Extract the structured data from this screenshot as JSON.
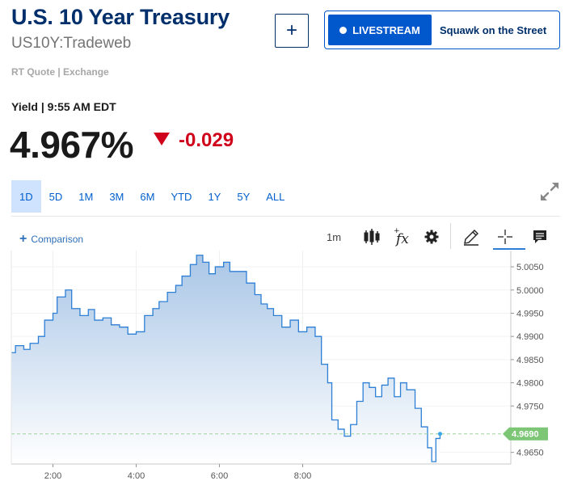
{
  "header": {
    "title": "U.S. 10 Year Treasury",
    "symbol": "US10Y:Tradeweb",
    "add_label": "+",
    "livestream_label": "LIVESTREAM",
    "show_name": "Squawk on the Street",
    "source": "RT Quote | Exchange"
  },
  "quote": {
    "yield_time": "Yield | 9:55 AM EDT",
    "price": "4.967%",
    "change": "-0.029",
    "change_color": "#d0021b"
  },
  "ranges": [
    {
      "label": "1D",
      "active": true
    },
    {
      "label": "5D"
    },
    {
      "label": "1M"
    },
    {
      "label": "3M"
    },
    {
      "label": "6M"
    },
    {
      "label": "YTD"
    },
    {
      "label": "1Y"
    },
    {
      "label": "5Y"
    },
    {
      "label": "ALL"
    }
  ],
  "toolbar": {
    "comparison_label": "Comparison",
    "interval": "1m",
    "icons": [
      "candlestick-icon",
      "function-icon",
      "gear-icon",
      "pencil-icon",
      "crosshair-icon",
      "comment-icon"
    ]
  },
  "chart_data": {
    "type": "area",
    "x_ticks": [
      "2:00",
      "4:00",
      "6:00",
      "8:00"
    ],
    "y_ticks": [
      "5.0050",
      "5.0000",
      "4.9950",
      "4.9900",
      "4.9850",
      "4.9800",
      "4.9750",
      "4.9690",
      "4.9650"
    ],
    "ylim": [
      4.9625,
      5.0085
    ],
    "xlim": [
      0,
      24
    ],
    "last_value": "4.9690",
    "last_value_num": 4.969,
    "series": [
      {
        "color": "#2d7fd6",
        "points": [
          [
            0.0,
            4.9865
          ],
          [
            0.2,
            4.988
          ],
          [
            0.6,
            4.9872
          ],
          [
            0.9,
            4.9885
          ],
          [
            1.3,
            4.99
          ],
          [
            1.6,
            4.9935
          ],
          [
            2.0,
            4.995
          ],
          [
            2.2,
            4.9985
          ],
          [
            2.6,
            5.0
          ],
          [
            2.9,
            4.996
          ],
          [
            3.3,
            4.9945
          ],
          [
            3.7,
            4.9958
          ],
          [
            4.0,
            4.9935
          ],
          [
            4.4,
            4.994
          ],
          [
            4.8,
            4.9925
          ],
          [
            5.2,
            4.992
          ],
          [
            5.6,
            4.9905
          ],
          [
            6.0,
            4.991
          ],
          [
            6.4,
            4.9945
          ],
          [
            6.8,
            4.996
          ],
          [
            7.1,
            4.9975
          ],
          [
            7.5,
            4.9995
          ],
          [
            7.9,
            5.001
          ],
          [
            8.2,
            5.003
          ],
          [
            8.6,
            5.0055
          ],
          [
            8.9,
            5.0075
          ],
          [
            9.2,
            5.006
          ],
          [
            9.5,
            5.0035
          ],
          [
            9.8,
            5.005
          ],
          [
            10.2,
            5.006
          ],
          [
            10.5,
            5.004
          ],
          [
            10.9,
            5.004
          ],
          [
            11.3,
            5.0015
          ],
          [
            11.7,
            4.999
          ],
          [
            12.0,
            4.997
          ],
          [
            12.3,
            4.996
          ],
          [
            12.6,
            4.9945
          ],
          [
            13.0,
            4.992
          ],
          [
            13.4,
            4.9935
          ],
          [
            13.8,
            4.991
          ],
          [
            14.2,
            4.992
          ],
          [
            14.6,
            4.99
          ],
          [
            14.9,
            4.984
          ],
          [
            15.2,
            4.98
          ],
          [
            15.4,
            4.972
          ],
          [
            15.7,
            4.97
          ],
          [
            16.0,
            4.9685
          ],
          [
            16.3,
            4.971
          ],
          [
            16.6,
            4.976
          ],
          [
            16.9,
            4.98
          ],
          [
            17.2,
            4.979
          ],
          [
            17.5,
            4.977
          ],
          [
            17.8,
            4.9795
          ],
          [
            18.1,
            4.981
          ],
          [
            18.4,
            4.977
          ],
          [
            18.7,
            4.98
          ],
          [
            19.0,
            4.9785
          ],
          [
            19.4,
            4.9745
          ],
          [
            19.7,
            4.9705
          ],
          [
            20.0,
            4.966
          ],
          [
            20.2,
            4.963
          ],
          [
            20.4,
            4.968
          ],
          [
            20.6,
            4.969
          ]
        ]
      }
    ]
  }
}
